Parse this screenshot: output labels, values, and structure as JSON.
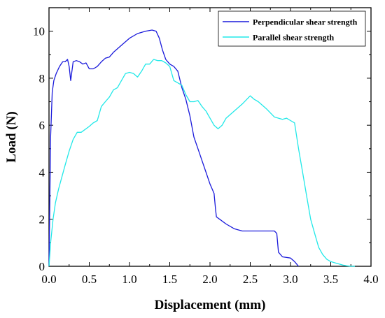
{
  "chart_data": {
    "type": "line",
    "xlabel": "Displacement (mm)",
    "ylabel": "Load (N)",
    "xlim": [
      0.0,
      4.0
    ],
    "ylim": [
      0,
      11
    ],
    "xticks": [
      0.0,
      0.5,
      1.0,
      1.5,
      2.0,
      2.5,
      3.0,
      3.5,
      4.0
    ],
    "xtick_labels": [
      "0.0",
      "0.5",
      "1.0",
      "1.5",
      "2.0",
      "2.5",
      "3.0",
      "3.5",
      "4.0"
    ],
    "yticks": [
      0,
      2,
      4,
      6,
      8,
      10
    ],
    "ytick_labels": [
      "0",
      "2",
      "4",
      "6",
      "8",
      "10"
    ],
    "grid": false,
    "legend_position": "top-right",
    "series": [
      {
        "name": "Perpendicular shear strength",
        "color": "#1a1adb",
        "x": [
          0.0,
          0.02,
          0.04,
          0.06,
          0.09,
          0.13,
          0.17,
          0.2,
          0.23,
          0.25,
          0.27,
          0.3,
          0.34,
          0.38,
          0.42,
          0.46,
          0.5,
          0.55,
          0.6,
          0.65,
          0.7,
          0.75,
          0.8,
          0.9,
          1.0,
          1.1,
          1.2,
          1.28,
          1.33,
          1.37,
          1.41,
          1.45,
          1.5,
          1.55,
          1.6,
          1.65,
          1.7,
          1.75,
          1.8,
          1.85,
          1.9,
          1.95,
          2.0,
          2.05,
          2.07,
          2.08,
          2.12,
          2.2,
          2.3,
          2.4,
          2.5,
          2.6,
          2.7,
          2.8,
          2.83,
          2.85,
          2.9,
          3.0,
          3.05,
          3.1
        ],
        "y": [
          0.0,
          5.5,
          7.4,
          7.9,
          8.2,
          8.5,
          8.7,
          8.7,
          8.8,
          8.5,
          7.9,
          8.7,
          8.75,
          8.7,
          8.6,
          8.65,
          8.4,
          8.4,
          8.5,
          8.7,
          8.85,
          8.9,
          9.1,
          9.4,
          9.7,
          9.9,
          10.0,
          10.05,
          10.0,
          9.7,
          9.2,
          8.8,
          8.6,
          8.5,
          8.3,
          7.6,
          7.1,
          6.4,
          5.5,
          5.0,
          4.5,
          4.0,
          3.5,
          3.1,
          2.4,
          2.1,
          2.0,
          1.8,
          1.6,
          1.5,
          1.5,
          1.5,
          1.5,
          1.5,
          1.4,
          0.6,
          0.4,
          0.35,
          0.2,
          0.0
        ]
      },
      {
        "name": "Parallel shear strength",
        "color": "#21e8e8",
        "x": [
          0.0,
          0.02,
          0.05,
          0.08,
          0.12,
          0.16,
          0.2,
          0.25,
          0.3,
          0.35,
          0.4,
          0.5,
          0.55,
          0.6,
          0.65,
          0.7,
          0.75,
          0.8,
          0.85,
          0.9,
          0.95,
          1.0,
          1.05,
          1.1,
          1.15,
          1.2,
          1.25,
          1.3,
          1.35,
          1.4,
          1.45,
          1.5,
          1.55,
          1.6,
          1.65,
          1.7,
          1.75,
          1.8,
          1.85,
          1.9,
          1.95,
          2.0,
          2.05,
          2.1,
          2.15,
          2.2,
          2.3,
          2.4,
          2.5,
          2.55,
          2.6,
          2.7,
          2.8,
          2.85,
          2.9,
          2.95,
          3.0,
          3.05,
          3.1,
          3.15,
          3.2,
          3.25,
          3.3,
          3.35,
          3.4,
          3.45,
          3.5,
          3.55,
          3.6,
          3.65,
          3.7,
          3.75,
          3.8
        ],
        "y": [
          0.0,
          1.0,
          2.0,
          2.7,
          3.3,
          3.8,
          4.3,
          4.9,
          5.4,
          5.7,
          5.7,
          5.95,
          6.1,
          6.2,
          6.8,
          7.0,
          7.2,
          7.5,
          7.6,
          7.9,
          8.2,
          8.25,
          8.2,
          8.05,
          8.3,
          8.6,
          8.6,
          8.8,
          8.75,
          8.75,
          8.65,
          8.5,
          7.9,
          7.8,
          7.7,
          7.3,
          7.0,
          7.0,
          7.05,
          6.8,
          6.6,
          6.3,
          6.0,
          5.85,
          6.0,
          6.3,
          6.6,
          6.9,
          7.25,
          7.1,
          7.0,
          6.7,
          6.35,
          6.3,
          6.25,
          6.3,
          6.2,
          6.1,
          5.0,
          4.0,
          3.0,
          2.0,
          1.4,
          0.8,
          0.5,
          0.3,
          0.2,
          0.15,
          0.1,
          0.05,
          0.02,
          0.0,
          0.0
        ]
      }
    ]
  }
}
